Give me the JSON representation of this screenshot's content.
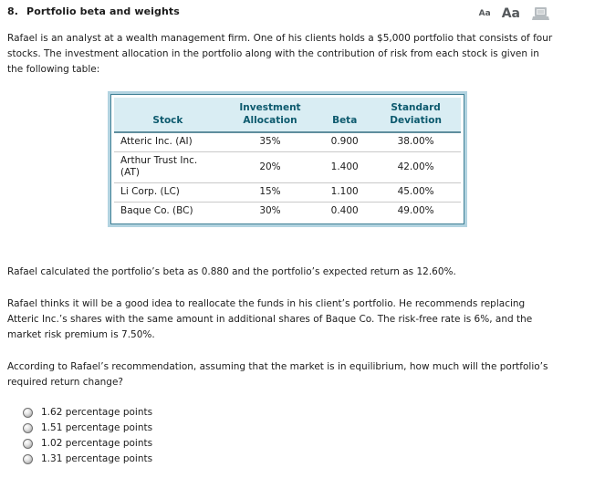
{
  "header": {
    "title_number": "8.",
    "title": "Portfolio beta and weights",
    "font_small_label": "Aa",
    "font_large_label": "Aa",
    "icons": [
      "font-size-small",
      "font-size-large",
      "printer"
    ]
  },
  "paragraphs": {
    "intro": "Rafael is an analyst at a wealth management firm. One of his clients holds a $5,000 portfolio that consists of four stocks. The investment allocation in the portfolio along with the contribution of risk from each stock is given in the following table:",
    "calculated": "Rafael calculated the portfolio’s beta as 0.880 and the portfolio’s expected return as 12.60%.",
    "recommendation": "Rafael thinks it will be a good idea to reallocate the funds in his client’s portfolio. He recommends replacing Atteric Inc.’s shares with the same amount in additional shares of Baque Co. The risk-free rate is 6%, and the market risk premium is 7.50%.",
    "question": "According to Rafael’s recommendation, assuming that the market is in equilibrium, how much will the portfolio’s required return change?"
  },
  "table": {
    "columns": [
      {
        "key": "stock",
        "lines": [
          "Stock"
        ],
        "width": "31%"
      },
      {
        "key": "allocation",
        "lines": [
          "Investment",
          "Allocation"
        ],
        "width": "28%"
      },
      {
        "key": "beta",
        "lines": [
          "Beta"
        ],
        "width": "15%"
      },
      {
        "key": "std_dev",
        "lines": [
          "Standard",
          "Deviation"
        ],
        "width": "26%"
      }
    ],
    "rows": [
      {
        "stock": "Atteric Inc. (AI)",
        "allocation": "35%",
        "beta": "0.900",
        "std_dev": "38.00%"
      },
      {
        "stock": "Arthur Trust Inc. (AT)",
        "allocation": "20%",
        "beta": "1.400",
        "std_dev": "42.00%"
      },
      {
        "stock": "Li Corp. (LC)",
        "allocation": "15%",
        "beta": "1.100",
        "std_dev": "45.00%"
      },
      {
        "stock": "Baque Co. (BC)",
        "allocation": "30%",
        "beta": "0.400",
        "std_dev": "49.00%"
      }
    ]
  },
  "options": [
    {
      "label": "1.62 percentage points",
      "selected": false
    },
    {
      "label": "1.51 percentage points",
      "selected": false
    },
    {
      "label": "1.02 percentage points",
      "selected": false
    },
    {
      "label": "1.31 percentage points",
      "selected": false
    }
  ],
  "colors": {
    "text": "#1c1c1c",
    "table_header_bg": "#d9edf3",
    "table_header_text": "#0d5a6e",
    "table_border": "#3e7f95",
    "table_outer_glow": "#b2d3e0",
    "header_rule": "#5f8e9e",
    "row_rule": "#c9c9c9",
    "icon_gray": "#55595c",
    "printer_gray": "#b6bcc0"
  }
}
